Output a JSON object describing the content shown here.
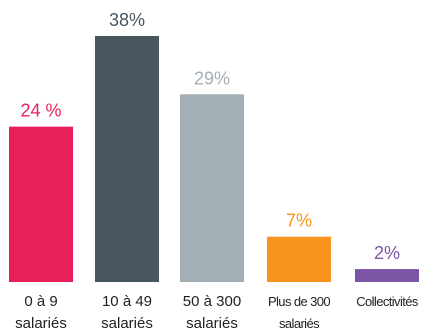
{
  "chart_data": {
    "type": "bar",
    "title": "",
    "xlabel": "",
    "ylabel": "",
    "ylim": [
      0,
      38
    ],
    "grid": false,
    "legend": "none",
    "categories": [
      [
        "0 à 9",
        "salariés"
      ],
      [
        "10 à 49",
        "salariés"
      ],
      [
        "50 à 300",
        "salariés"
      ],
      [
        "Plus de 300",
        "salariés"
      ],
      [
        "Collectivités"
      ]
    ],
    "values": [
      24,
      38,
      29,
      7,
      2
    ],
    "value_labels": [
      "24 %",
      "38%",
      "29%",
      "7%",
      "2%"
    ],
    "colors": [
      "#e8205a",
      "#485660",
      "#a3aeb5",
      "#f7941d",
      "#7b56a6"
    ]
  }
}
